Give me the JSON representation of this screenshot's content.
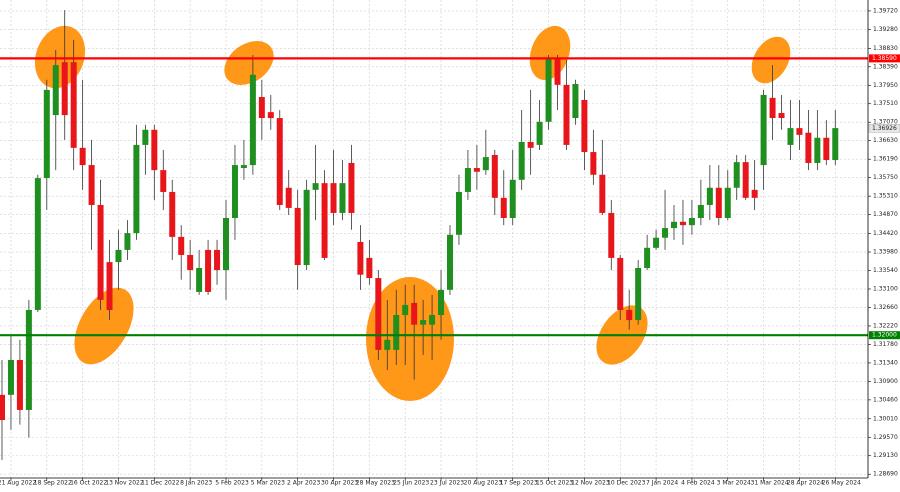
{
  "chart_data": {
    "type": "candlestick",
    "categories": [
      null,
      "21 Aug 2022",
      null,
      null,
      null,
      "18 Sep 2022",
      null,
      null,
      null,
      "16 Oct 2022",
      null,
      null,
      null,
      "13 Nov 2022",
      null,
      null,
      null,
      "11 Dec 2022",
      null,
      null,
      null,
      "8 Jan 2023",
      null,
      null,
      null,
      "5 Feb 2023",
      null,
      null,
      null,
      "5 Mar 2023",
      null,
      null,
      null,
      "2 Apr 2023",
      null,
      null,
      null,
      "30 Apr 2023",
      null,
      null,
      null,
      "28 May 2023",
      null,
      null,
      null,
      "25 Jun 2023",
      null,
      null,
      null,
      "23 Jul 2023",
      null,
      null,
      null,
      "20 Aug 2023",
      null,
      null,
      null,
      "17 Sep 2023",
      null,
      null,
      null,
      "15 Oct 2023",
      null,
      null,
      null,
      "12 Nov 2023",
      null,
      null,
      null,
      "10 Dec 2023",
      null,
      null,
      null,
      "7 Jan 2024",
      null,
      null,
      null,
      "4 Feb 2024",
      null,
      null,
      null,
      "3 Mar 2024",
      null,
      null,
      null,
      "31 Mar 2024",
      null,
      null,
      null,
      "28 Apr 2024",
      null,
      null,
      null,
      "26 May 2024"
    ],
    "open": [
      1.3058,
      1.3058,
      1.3141,
      1.3022,
      1.326,
      1.3574,
      1.3724,
      1.385,
      1.385,
      1.3646,
      1.3605,
      1.351,
      1.3374,
      1.3374,
      1.3403,
      1.3443,
      1.3653,
      1.3689,
      1.3593,
      1.3541,
      1.3434,
      1.3391,
      1.3303,
      1.3403,
      1.3403,
      1.3355,
      1.3479,
      1.3598,
      1.3605,
      1.3767,
      1.3731,
      1.3717,
      1.3551,
      1.3503,
      1.3367,
      1.3546,
      1.3562,
      1.3562,
      1.3491,
      1.361,
      1.3422,
      1.3384,
      1.3336,
      1.3165,
      1.3165,
      1.3248,
      1.3277,
      1.3225,
      1.3225,
      1.3248,
      1.3308,
      1.3439,
      1.3541,
      1.3598,
      1.3593,
      1.3629,
      1.3527,
      1.3479,
      1.357,
      1.366,
      1.3653,
      1.3708,
      1.386,
      1.3796,
      1.3717,
      1.376,
      1.3636,
      1.3582,
      1.3491,
      1.3384,
      1.326,
      1.3236,
      1.336,
      1.3408,
      1.3432,
      1.3455,
      1.347,
      1.3462,
      1.3479,
      1.351,
      1.3551,
      1.3479,
      1.3551,
      1.3612,
      1.3546,
      1.3605,
      1.3765,
      1.3729,
      1.3653,
      1.3693,
      1.3682,
      1.361,
      1.367,
      1.3617
    ],
    "high": [
      1.3141,
      1.3201,
      1.3189,
      1.3284,
      1.3582,
      1.3808,
      1.3879,
      1.3974,
      1.3903,
      1.3808,
      1.3665,
      1.357,
      1.3427,
      1.3451,
      1.3474,
      1.3701,
      1.3701,
      1.3701,
      1.3641,
      1.357,
      1.3462,
      1.3427,
      1.3403,
      1.3427,
      1.3427,
      1.3522,
      1.3653,
      1.3665,
      1.3867,
      1.3808,
      1.3772,
      1.3736,
      1.3593,
      1.3546,
      1.357,
      1.3653,
      1.3593,
      1.3641,
      1.3617,
      1.3653,
      1.3462,
      1.3427,
      1.3355,
      1.3284,
      1.3308,
      1.332,
      1.332,
      1.3284,
      1.3296,
      1.3355,
      1.3462,
      1.3582,
      1.3641,
      1.3653,
      1.3689,
      1.3641,
      1.3593,
      1.3641,
      1.3736,
      1.3784,
      1.376,
      1.3867,
      1.3867,
      1.3855,
      1.3808,
      1.3784,
      1.3689,
      1.3665,
      1.3522,
      1.3391,
      1.3308,
      1.3379,
      1.3439,
      1.3451,
      1.3546,
      1.351,
      1.3522,
      1.3522,
      1.357,
      1.3605,
      1.3605,
      1.3593,
      1.3629,
      1.3629,
      1.3617,
      1.3784,
      1.3843,
      1.3772,
      1.376,
      1.376,
      1.3736,
      1.3736,
      1.3712,
      1.3736
    ],
    "low": [
      1.2903,
      1.2975,
      1.2987,
      1.2956,
      1.3255,
      1.3498,
      1.3593,
      1.3665,
      1.3593,
      1.3546,
      1.3403,
      1.326,
      1.3236,
      1.3308,
      1.3379,
      1.3427,
      1.3582,
      1.3522,
      1.3498,
      1.3379,
      1.3332,
      1.3308,
      1.3296,
      1.3296,
      1.332,
      1.3284,
      1.3427,
      1.357,
      1.3582,
      1.3665,
      1.3689,
      1.3498,
      1.3486,
      1.3308,
      1.3355,
      1.3474,
      1.3379,
      1.3462,
      1.3474,
      1.3451,
      1.3308,
      1.332,
      1.3141,
      1.3117,
      1.3129,
      1.3129,
      1.3094,
      1.3153,
      1.3141,
      1.3189,
      1.3296,
      1.3415,
      1.3522,
      1.3546,
      1.3582,
      1.3486,
      1.3462,
      1.3462,
      1.3546,
      1.3582,
      1.3641,
      1.3689,
      1.3736,
      1.3641,
      1.3701,
      1.3593,
      1.3558,
      1.3486,
      1.3355,
      1.3236,
      1.3213,
      1.3225,
      1.3355,
      1.3403,
      1.3403,
      1.3427,
      1.3415,
      1.3439,
      1.3462,
      1.3474,
      1.3462,
      1.3474,
      1.3522,
      1.3522,
      1.3498,
      1.3546,
      1.3665,
      1.3689,
      1.3617,
      1.3641,
      1.3593,
      1.3593,
      1.3605,
      1.3605
    ],
    "close": [
      1.2998,
      1.3141,
      1.3022,
      1.326,
      1.3574,
      1.3784,
      1.3843,
      1.3724,
      1.3646,
      1.3605,
      1.351,
      1.3284,
      1.326,
      1.3403,
      1.3443,
      1.3653,
      1.3689,
      1.3593,
      1.3541,
      1.3434,
      1.3391,
      1.3355,
      1.336,
      1.3303,
      1.3355,
      1.3479,
      1.3605,
      1.3605,
      1.382,
      1.3717,
      1.3717,
      1.351,
      1.3503,
      1.3367,
      1.3546,
      1.3562,
      1.3384,
      1.3491,
      1.3562,
      1.3491,
      1.3344,
      1.3336,
      1.3165,
      1.3189,
      1.3248,
      1.3272,
      1.3225,
      1.3236,
      1.3248,
      1.3308,
      1.3439,
      1.3541,
      1.3598,
      1.3589,
      1.3624,
      1.3527,
      1.3479,
      1.357,
      1.366,
      1.3646,
      1.3708,
      1.386,
      1.3796,
      1.3653,
      1.3798,
      1.3636,
      1.3582,
      1.3491,
      1.3384,
      1.326,
      1.3236,
      1.336,
      1.3408,
      1.3432,
      1.3455,
      1.347,
      1.3462,
      1.3479,
      1.351,
      1.3551,
      1.3479,
      1.3551,
      1.3612,
      1.3527,
      1.3527,
      1.3772,
      1.3717,
      1.3717,
      1.3693,
      1.3677,
      1.361,
      1.367,
      1.3617,
      1.3693
    ],
    "up_color": "#1f8f1f",
    "down_color": "#e8161b",
    "wick_color": "#333333",
    "ylim": [
      1.286,
      1.3998
    ],
    "yticks": [
      {
        "value": 1.3972,
        "label": "1.39720"
      },
      {
        "value": 1.3928,
        "label": "1.39280"
      },
      {
        "value": 1.3883,
        "label": "1.38830"
      },
      {
        "value": 1.3839,
        "label": "1.38390"
      },
      {
        "value": 1.3795,
        "label": "1.37950"
      },
      {
        "value": 1.3751,
        "label": "1.37510"
      },
      {
        "value": 1.3707,
        "label": "1.37070"
      },
      {
        "value": 1.3663,
        "label": "1.36630"
      },
      {
        "value": 1.3619,
        "label": "1.36190"
      },
      {
        "value": 1.3575,
        "label": "1.35750"
      },
      {
        "value": 1.3531,
        "label": "1.35310"
      },
      {
        "value": 1.3487,
        "label": "1.34870"
      },
      {
        "value": 1.3442,
        "label": "1.34420"
      },
      {
        "value": 1.3398,
        "label": "1.33980"
      },
      {
        "value": 1.3354,
        "label": "1.33540"
      },
      {
        "value": 1.331,
        "label": "1.33100"
      },
      {
        "value": 1.3266,
        "label": "1.32660"
      },
      {
        "value": 1.3222,
        "label": "1.32220"
      },
      {
        "value": 1.3178,
        "label": "1.31780"
      },
      {
        "value": 1.3134,
        "label": "1.31340"
      },
      {
        "value": 1.309,
        "label": "1.30900"
      },
      {
        "value": 1.3046,
        "label": "1.30460"
      },
      {
        "value": 1.3001,
        "label": "1.30010"
      },
      {
        "value": 1.2957,
        "label": "1.29570"
      },
      {
        "value": 1.2913,
        "label": "1.29130"
      },
      {
        "value": 1.2869,
        "label": "1.28690"
      }
    ],
    "grid": true,
    "hlines": [
      {
        "value": 1.3859,
        "label": "1.38590",
        "color": "#ff0000"
      },
      {
        "value": 1.32,
        "label": "1.32000",
        "color": "#008000"
      }
    ],
    "last_price": 1.36926
  }
}
